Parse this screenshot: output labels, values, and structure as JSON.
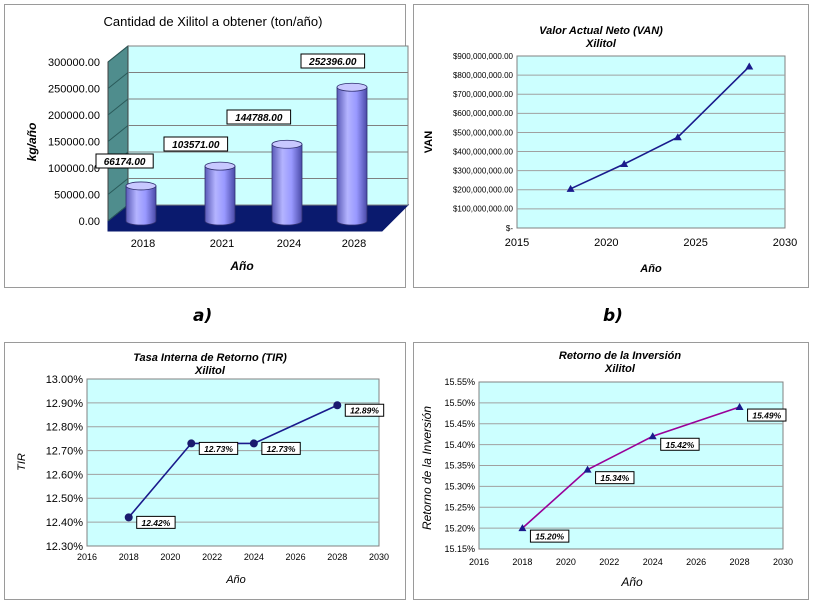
{
  "captions": {
    "a": "a)",
    "b": "b)"
  },
  "colors": {
    "plot_bg": "#ccffff",
    "bar": "#9999ff",
    "bar_floor": "#0a1a6e",
    "line_navy": "#1a1a8c",
    "line_purple": "#990099",
    "grid": "#a0a0a0"
  },
  "chart_data": [
    {
      "id": "xilitol",
      "type": "bar",
      "title": "Cantidad de Xilitol a obtener (ton/año)",
      "xlabel": "Año",
      "ylabel": "kg/año",
      "categories": [
        "2018",
        "2021",
        "2024",
        "2028"
      ],
      "values": [
        66174,
        103571,
        144788,
        252396
      ],
      "data_labels": [
        "66174.00",
        "103571.00",
        "144788.00",
        "252396.00"
      ],
      "ylim": [
        0,
        300000
      ],
      "yticks": [
        "0.00",
        "50000.00",
        "100000.00",
        "150000.00",
        "200000.00",
        "250000.00",
        "300000.00"
      ],
      "grid": true
    },
    {
      "id": "van",
      "type": "line",
      "title": "Valor Actual Neto (VAN)",
      "subtitle": "Xilitol",
      "xlabel": "Año",
      "ylabel": "VAN",
      "x": [
        2018,
        2021,
        2024,
        2028
      ],
      "y": [
        205000000,
        335000000,
        475000000,
        845000000
      ],
      "xlim": [
        2015,
        2030
      ],
      "ylim": [
        0,
        900000000
      ],
      "xticks": [
        "2015",
        "2020",
        "2025",
        "2030"
      ],
      "yticks": [
        "$-",
        "$100,000,000.00",
        "$200,000,000.00",
        "$300,000,000.00",
        "$400,000,000.00",
        "$500,000,000.00",
        "$600,000,000.00",
        "$700,000,000.00",
        "$800,000,000.00",
        "$900,000,000.00"
      ],
      "grid": true
    },
    {
      "id": "tir",
      "type": "line",
      "title": "Tasa Interna de Retorno (TIR)",
      "subtitle": "Xilitol",
      "xlabel": "Año",
      "ylabel": "TIR",
      "x": [
        2018,
        2021,
        2024,
        2028
      ],
      "y": [
        12.42,
        12.73,
        12.73,
        12.89
      ],
      "data_labels": [
        "12.42%",
        "12.73%",
        "12.73%",
        "12.89%"
      ],
      "xlim": [
        2016,
        2030
      ],
      "ylim": [
        12.3,
        13.0
      ],
      "xticks": [
        "2016",
        "2018",
        "2020",
        "2022",
        "2024",
        "2026",
        "2028",
        "2030"
      ],
      "yticks": [
        "12.30%",
        "12.40%",
        "12.50%",
        "12.60%",
        "12.70%",
        "12.80%",
        "12.90%",
        "13.00%"
      ],
      "grid": true
    },
    {
      "id": "roi",
      "type": "line",
      "title": "Retorno de la Inversión",
      "subtitle": "Xilitol",
      "xlabel": "Año",
      "ylabel": "Retorno de la Inversión",
      "x": [
        2018,
        2021,
        2024,
        2028
      ],
      "y": [
        15.2,
        15.34,
        15.42,
        15.49
      ],
      "data_labels": [
        "15.20%",
        "15.34%",
        "15.42%",
        "15.49%"
      ],
      "xlim": [
        2016,
        2030
      ],
      "ylim": [
        15.15,
        15.55
      ],
      "xticks": [
        "2016",
        "2018",
        "2020",
        "2022",
        "2024",
        "2026",
        "2028",
        "2030"
      ],
      "yticks": [
        "15.15%",
        "15.20%",
        "15.25%",
        "15.30%",
        "15.35%",
        "15.40%",
        "15.45%",
        "15.50%",
        "15.55%"
      ],
      "grid": true
    }
  ]
}
